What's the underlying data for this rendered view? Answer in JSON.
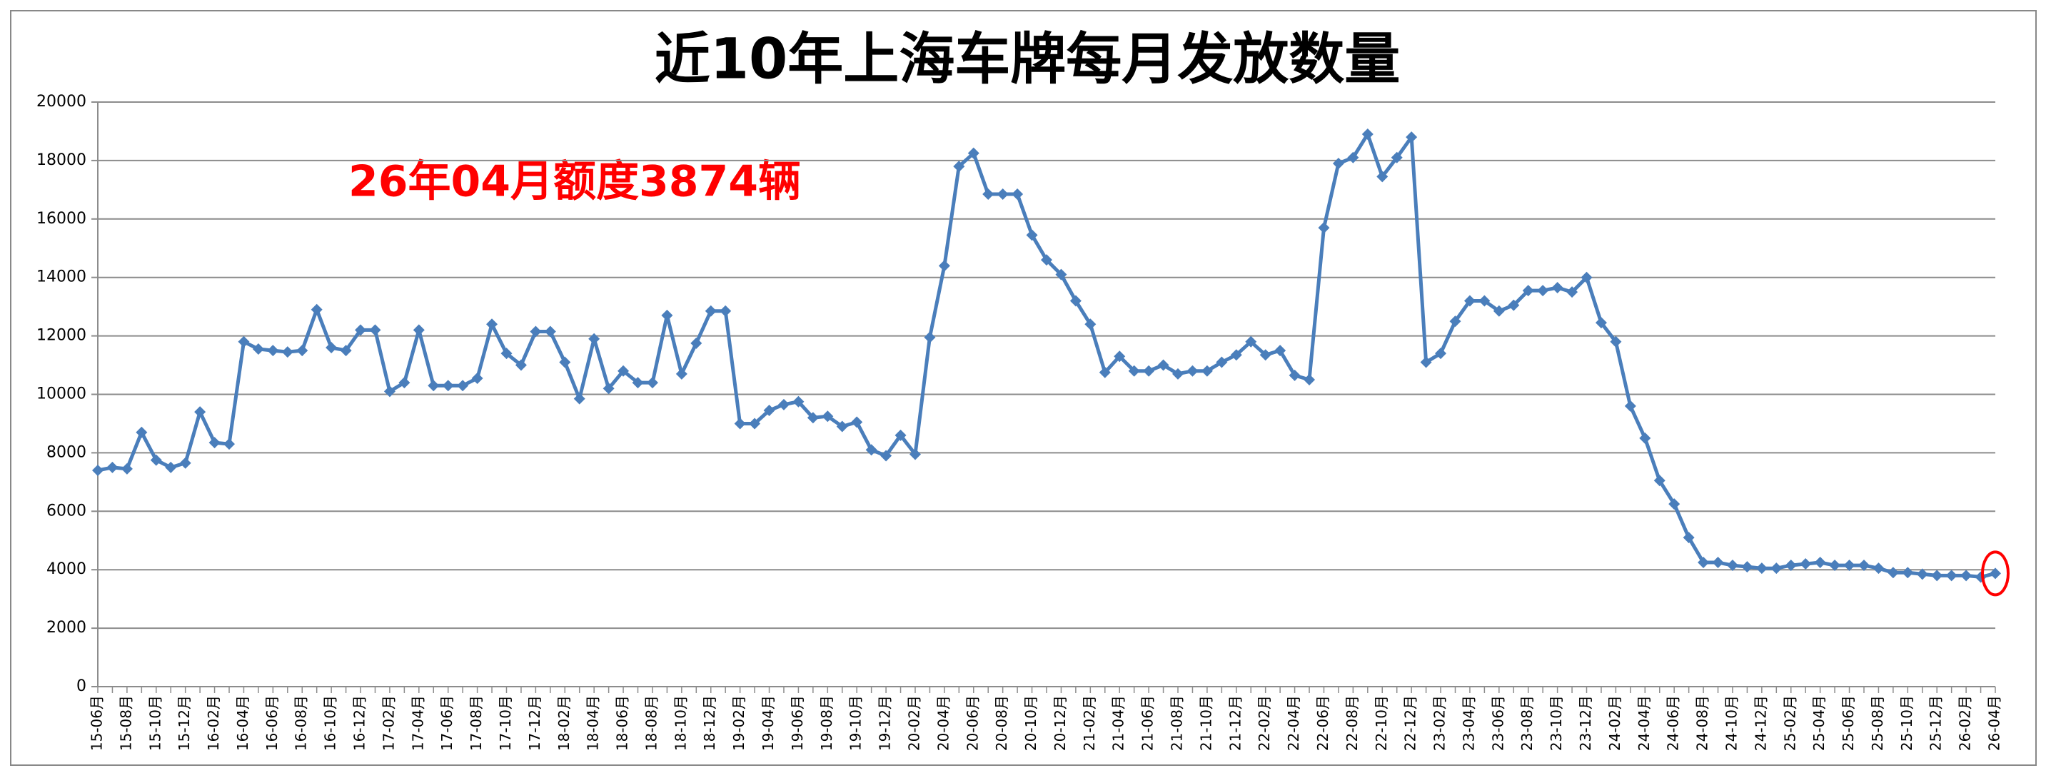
{
  "chart_data": {
    "type": "line",
    "title": "近10年上海车牌每月发放数量",
    "annotation": "26年04月额度3874辆",
    "color": "#4a7ebb",
    "annotation_color": "#ff0000",
    "grid": true,
    "categories": [
      "15-06月",
      null,
      "15-08月",
      null,
      "15-10月",
      null,
      "15-12月",
      null,
      "16-02月",
      null,
      "16-04月",
      null,
      "16-06月",
      null,
      "16-08月",
      null,
      "16-10月",
      null,
      "16-12月",
      null,
      "17-02月",
      null,
      "17-04月",
      null,
      "17-06月",
      null,
      "17-08月",
      null,
      "17-10月",
      null,
      "17-12月",
      null,
      "18-02月",
      null,
      "18-04月",
      null,
      "18-06月",
      null,
      "18-08月",
      null,
      "18-10月",
      null,
      "18-12月",
      null,
      "19-02月",
      null,
      "19-04月",
      null,
      "19-06月",
      null,
      "19-08月",
      null,
      "19-10月",
      null,
      "19-12月",
      null,
      "20-02月",
      null,
      "20-04月",
      null,
      "20-06月",
      null,
      "20-08月",
      null,
      "20-10月",
      null,
      "20-12月",
      null,
      "21-02月",
      null,
      "21-04月",
      null,
      "21-06月",
      null,
      "21-08月",
      null,
      "21-10月",
      null,
      "21-12月",
      null,
      "22-02月",
      null,
      "22-04月",
      null,
      "22-06月",
      null,
      "22-08月",
      null,
      "22-10月",
      null,
      "22-12月",
      null,
      "23-02月",
      null,
      "23-04月",
      null,
      "23-06月",
      null,
      "23-08月",
      null,
      "23-10月",
      null,
      "23-12月",
      null,
      "24-02月",
      null,
      "24-04月",
      null,
      "24-06月",
      null,
      "24-08月",
      null,
      "24-10月",
      null,
      "24-12月",
      null,
      "25-02月",
      null,
      "25-04月",
      null,
      "25-06月",
      null,
      "25-08月",
      null,
      "25-10月",
      null,
      "25-12月",
      null,
      "26-02月",
      null,
      "26-04月"
    ],
    "values": [
      7400,
      7500,
      7450,
      8700,
      7750,
      7500,
      7650,
      9400,
      8350,
      8300,
      11800,
      11550,
      11500,
      11450,
      11500,
      12900,
      11600,
      11500,
      12200,
      12200,
      10100,
      10400,
      12200,
      10300,
      10300,
      10300,
      10550,
      12400,
      11400,
      11000,
      12150,
      12150,
      11100,
      9850,
      11900,
      10200,
      10800,
      10400,
      10400,
      12700,
      10700,
      11750,
      12850,
      12850,
      9000,
      9000,
      9450,
      9650,
      9750,
      9200,
      9250,
      8900,
      9050,
      8100,
      7900,
      8600,
      7950,
      11950,
      14400,
      17800,
      18250,
      16850,
      16850,
      16850,
      15450,
      14600,
      14100,
      13200,
      12400,
      10750,
      11300,
      10800,
      10800,
      11000,
      10700,
      10800,
      10800,
      11100,
      11350,
      11800,
      11350,
      11500,
      10650,
      10500,
      15700,
      17900,
      18100,
      18900,
      17450,
      18100,
      18800,
      11100,
      11400,
      12500,
      13200,
      13200,
      12850,
      13050,
      13550,
      13550,
      13650,
      13500,
      14000,
      12450,
      11800,
      9600,
      8500,
      7050,
      6250,
      5100,
      4250,
      4250,
      4150,
      4100,
      4050,
      4050,
      4150,
      4200,
      4250,
      4150,
      4150,
      4150,
      4050,
      3900,
      3900,
      3850,
      3800,
      3800,
      3800,
      3750,
      3874
    ],
    "ylim": [
      0,
      20000
    ],
    "yticks": [
      0,
      2000,
      4000,
      6000,
      8000,
      10000,
      12000,
      14000,
      16000,
      18000,
      20000
    ]
  }
}
